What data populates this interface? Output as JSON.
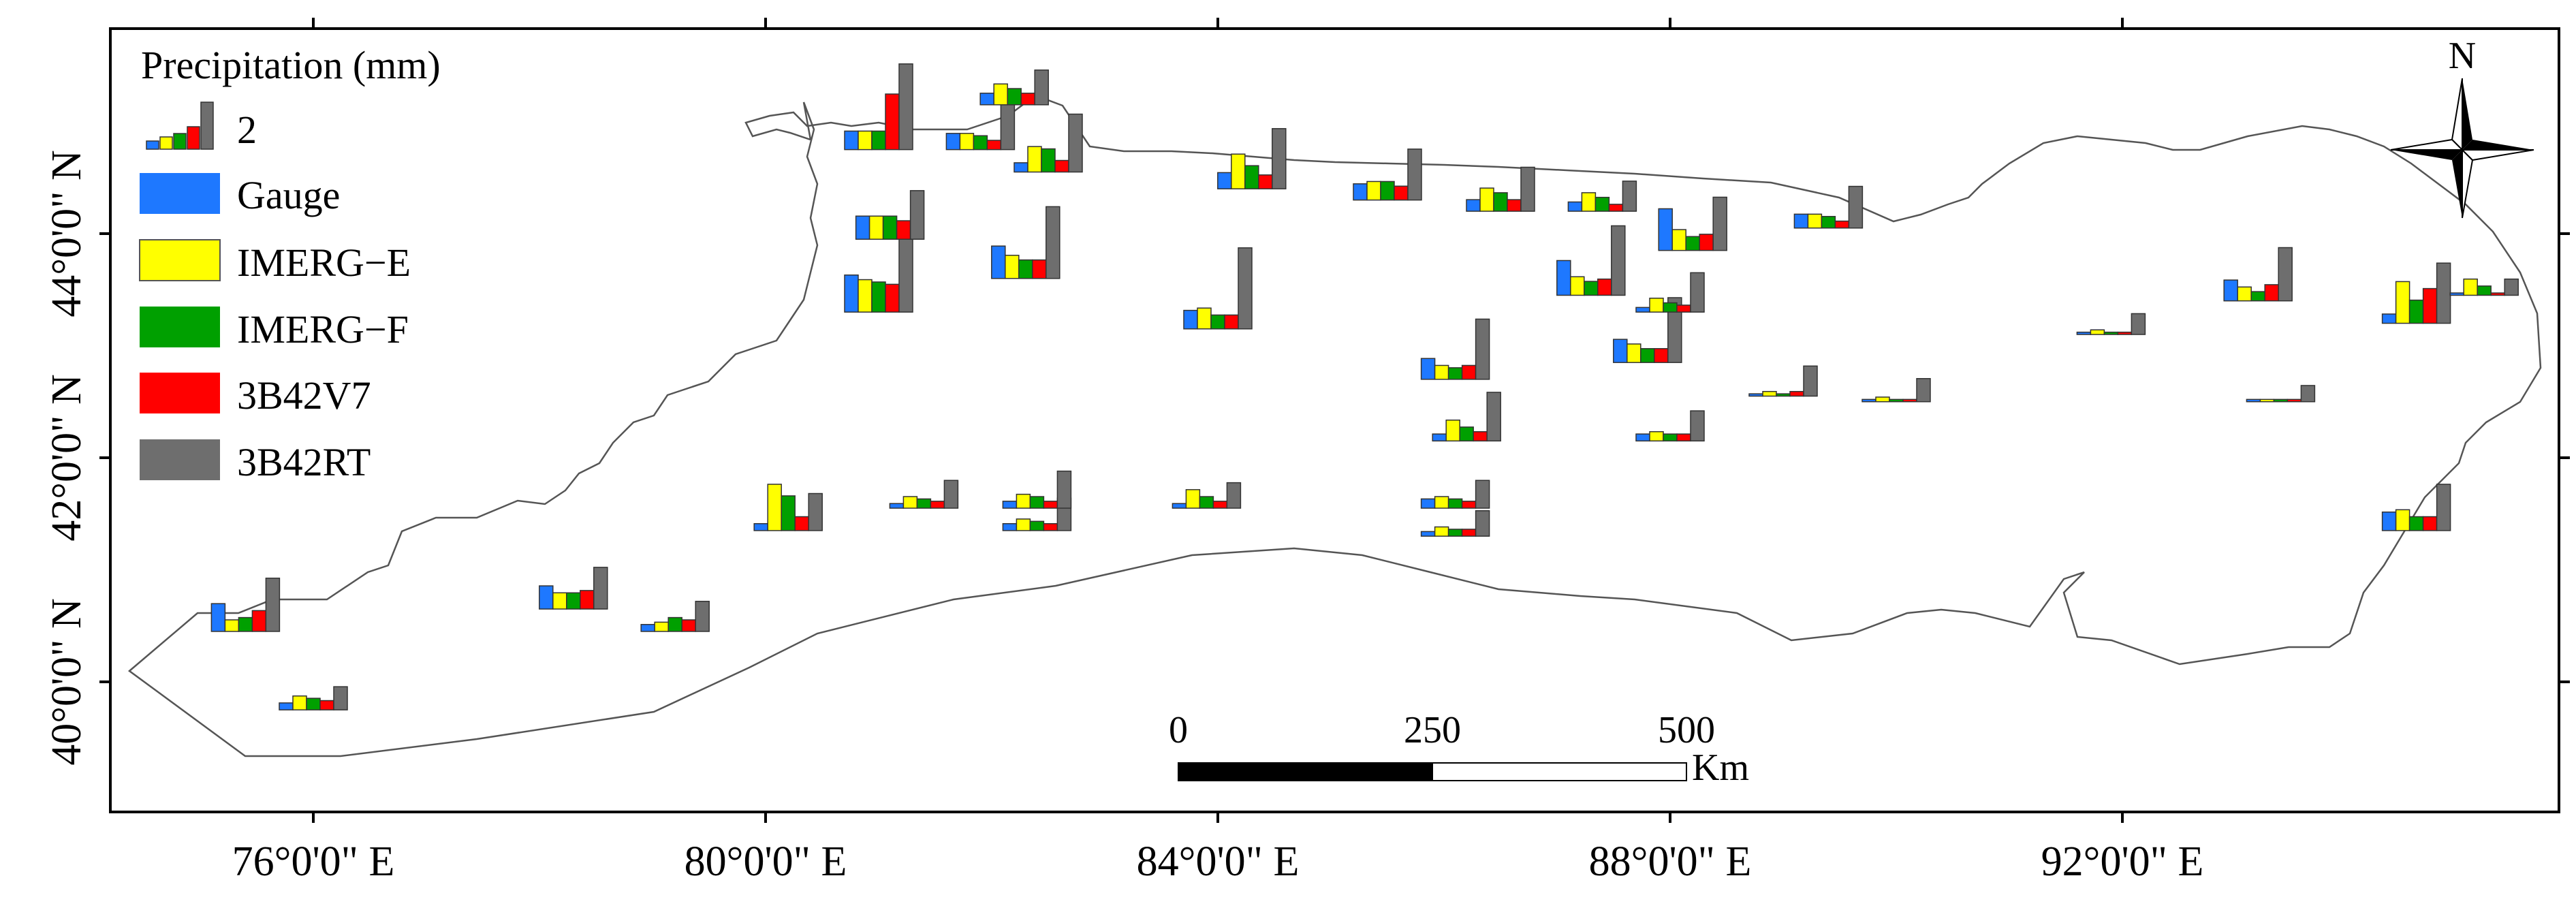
{
  "map": {
    "lon_labels": [
      "76°0'0\" E",
      "80°0'0\" E",
      "84°0'0\" E",
      "88°0'0\" E",
      "92°0'0\" E"
    ],
    "lat_labels": [
      "40°0'0\" N",
      "42°0'0\" N",
      "44°0'0\" N"
    ],
    "north_label": "N",
    "colors": {
      "Gauge": "#1e78ff",
      "IMERG-E": "#ffff00",
      "IMERG-F": "#00a000",
      "3B42V7": "#ff0000",
      "3B42RT": "#6e6e6e",
      "outline": "#555555"
    }
  },
  "legend": {
    "title": "Precipitation (mm)",
    "scale_value": "2",
    "items": [
      "Gauge",
      "IMERG−E",
      "IMERG−F",
      "3B42V7",
      "3B42RT"
    ]
  },
  "scale_bar": {
    "labels": [
      "0",
      "250",
      "500"
    ],
    "unit": "Km"
  },
  "chart_data": {
    "type": "bar",
    "title": "Precipitation (mm)",
    "series_names": [
      "Gauge",
      "IMERG-E",
      "IMERG-F",
      "3B42V7",
      "3B42RT"
    ],
    "stations": [
      {
        "lon": 76.0,
        "lat": 39.75,
        "values": [
          0.3,
          0.6,
          0.5,
          0.4,
          1.0
        ]
      },
      {
        "lon": 75.4,
        "lat": 40.45,
        "values": [
          1.2,
          0.5,
          0.6,
          0.9,
          2.3
        ]
      },
      {
        "lon": 78.3,
        "lat": 40.65,
        "values": [
          1.0,
          0.7,
          0.7,
          0.8,
          1.8
        ]
      },
      {
        "lon": 79.2,
        "lat": 40.45,
        "values": [
          0.3,
          0.4,
          0.6,
          0.5,
          1.3
        ]
      },
      {
        "lon": 80.2,
        "lat": 41.35,
        "values": [
          0.3,
          2.0,
          1.5,
          0.6,
          1.6
        ]
      },
      {
        "lon": 81.4,
        "lat": 41.55,
        "values": [
          0.2,
          0.5,
          0.4,
          0.3,
          1.2
        ]
      },
      {
        "lon": 82.4,
        "lat": 41.35,
        "values": [
          0.3,
          0.5,
          0.4,
          0.3,
          1.4
        ]
      },
      {
        "lon": 82.4,
        "lat": 41.55,
        "values": [
          0.3,
          0.6,
          0.5,
          0.3,
          1.6
        ]
      },
      {
        "lon": 83.9,
        "lat": 41.55,
        "values": [
          0.2,
          0.8,
          0.5,
          0.3,
          1.1
        ]
      },
      {
        "lon": 86.1,
        "lat": 41.55,
        "values": [
          0.4,
          0.5,
          0.4,
          0.3,
          1.2
        ]
      },
      {
        "lon": 86.1,
        "lat": 41.3,
        "values": [
          0.2,
          0.4,
          0.3,
          0.3,
          1.1
        ]
      },
      {
        "lon": 86.2,
        "lat": 42.15,
        "values": [
          0.3,
          0.9,
          0.6,
          0.4,
          2.1
        ]
      },
      {
        "lon": 86.1,
        "lat": 42.7,
        "values": [
          0.9,
          0.6,
          0.5,
          0.6,
          2.6
        ]
      },
      {
        "lon": 88.0,
        "lat": 42.15,
        "values": [
          0.3,
          0.4,
          0.3,
          0.3,
          1.3
        ]
      },
      {
        "lon": 87.8,
        "lat": 42.85,
        "values": [
          1.0,
          0.8,
          0.6,
          0.6,
          2.8
        ]
      },
      {
        "lon": 88.0,
        "lat": 43.3,
        "values": [
          0.2,
          0.6,
          0.4,
          0.3,
          1.7
        ]
      },
      {
        "lon": 87.3,
        "lat": 43.45,
        "values": [
          1.5,
          0.8,
          0.6,
          0.7,
          3.0
        ]
      },
      {
        "lon": 84.0,
        "lat": 43.15,
        "values": [
          0.8,
          0.9,
          0.6,
          0.6,
          3.5
        ]
      },
      {
        "lon": 82.3,
        "lat": 43.6,
        "values": [
          1.4,
          1.0,
          0.8,
          0.8,
          3.1
        ]
      },
      {
        "lon": 81.0,
        "lat": 43.3,
        "values": [
          1.6,
          1.4,
          1.3,
          1.2,
          3.3
        ]
      },
      {
        "lon": 81.1,
        "lat": 43.95,
        "values": [
          1.0,
          1.0,
          1.0,
          0.8,
          2.1
        ]
      },
      {
        "lon": 81.0,
        "lat": 44.75,
        "values": [
          0.8,
          0.8,
          0.8,
          2.4,
          3.7
        ]
      },
      {
        "lon": 81.9,
        "lat": 44.75,
        "values": [
          0.7,
          0.7,
          0.6,
          0.4,
          2.0
        ]
      },
      {
        "lon": 82.2,
        "lat": 45.15,
        "values": [
          0.5,
          0.9,
          0.7,
          0.5,
          1.5
        ]
      },
      {
        "lon": 82.5,
        "lat": 44.55,
        "values": [
          0.4,
          1.1,
          1.0,
          0.5,
          2.5
        ]
      },
      {
        "lon": 84.3,
        "lat": 44.4,
        "values": [
          0.7,
          1.5,
          1.0,
          0.6,
          2.6
        ]
      },
      {
        "lon": 85.5,
        "lat": 44.3,
        "values": [
          0.7,
          0.8,
          0.8,
          0.6,
          2.2
        ]
      },
      {
        "lon": 86.5,
        "lat": 44.2,
        "values": [
          0.5,
          1.0,
          0.8,
          0.5,
          1.9
        ]
      },
      {
        "lon": 87.4,
        "lat": 44.2,
        "values": [
          0.4,
          0.8,
          0.6,
          0.3,
          1.3
        ]
      },
      {
        "lon": 88.2,
        "lat": 43.85,
        "values": [
          1.8,
          0.9,
          0.6,
          0.7,
          2.3
        ]
      },
      {
        "lon": 89.4,
        "lat": 44.05,
        "values": [
          0.6,
          0.6,
          0.5,
          0.3,
          1.8
        ]
      },
      {
        "lon": 89.0,
        "lat": 42.55,
        "values": [
          0.1,
          0.2,
          0.1,
          0.2,
          1.3
        ]
      },
      {
        "lon": 90.0,
        "lat": 42.5,
        "values": [
          0.1,
          0.2,
          0.1,
          0.1,
          1.0
        ]
      },
      {
        "lon": 91.9,
        "lat": 43.1,
        "values": [
          0.1,
          0.2,
          0.1,
          0.1,
          0.9
        ]
      },
      {
        "lon": 93.2,
        "lat": 43.4,
        "values": [
          0.9,
          0.6,
          0.4,
          0.7,
          2.3
        ]
      },
      {
        "lon": 93.4,
        "lat": 42.5,
        "values": [
          0.1,
          0.1,
          0.1,
          0.1,
          0.7
        ]
      },
      {
        "lon": 94.6,
        "lat": 43.2,
        "values": [
          0.4,
          1.8,
          1.0,
          1.5,
          2.6
        ]
      },
      {
        "lon": 95.2,
        "lat": 43.45,
        "values": [
          0.1,
          0.7,
          0.4,
          0.1,
          0.7
        ]
      },
      {
        "lon": 94.6,
        "lat": 41.35,
        "values": [
          0.8,
          0.9,
          0.6,
          0.6,
          2.0
        ]
      }
    ]
  }
}
